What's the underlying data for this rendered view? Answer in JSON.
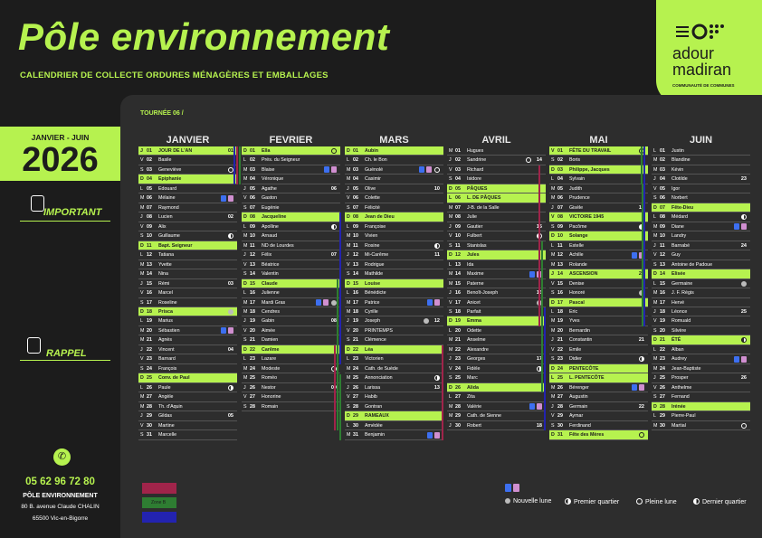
{
  "header": {
    "title": "Pôle environnement",
    "subtitle": "CALENDRIER  DE COLLECTE ORDURES MÉNAGÈRES ET EMBALLAGES",
    "tournee": "TOURNÉE 06 /"
  },
  "logo": {
    "line1": "adour",
    "line2": "madiran",
    "tagline": "COMMUNAUTÉ DE COMMUNES"
  },
  "year_box": {
    "period": "JANVIER - JUIN",
    "year": "2026"
  },
  "sidebar": {
    "important": "IMPORTANT",
    "rappel": "RAPPEL",
    "phone": "05 62 96 72 80",
    "org": "PÔLE ENVIRONNEMENT",
    "address1": "80 B. avenue Claude CHALIN",
    "address2": "65500 Vic-en-Bigorre"
  },
  "legend": {
    "zone_b": "Zone B",
    "moons": [
      {
        "icon": "new-moon-icon",
        "label": "Nouvelle lune"
      },
      {
        "icon": "first-quarter-icon",
        "label": "Premier quartier"
      },
      {
        "icon": "full-moon-icon",
        "label": "Pleine lune"
      },
      {
        "icon": "last-quarter-icon",
        "label": "Dernier quartier"
      }
    ]
  },
  "colors": {
    "accent": "#b6f24f",
    "bin_blue": "#3d6ff0",
    "bin_pink": "#d08fd0",
    "vacation_red": "#a0244a",
    "vacation_green": "#2e7d32",
    "vacation_blue": "#2323b0"
  },
  "months": [
    {
      "name": "JANVIER",
      "days": [
        {
          "d": "J",
          "n": "01",
          "s": "JOUR DE L'AN",
          "h": true,
          "w": "01"
        },
        {
          "d": "V",
          "n": "02",
          "s": "Basile"
        },
        {
          "d": "S",
          "n": "03",
          "s": "Geneviève",
          "moon": "pl"
        },
        {
          "d": "D",
          "n": "04",
          "s": "Epiphanie",
          "h": true
        },
        {
          "d": "L",
          "n": "05",
          "s": "Edouard"
        },
        {
          "d": "M",
          "n": "06",
          "s": "Mélaine",
          "bins": true
        },
        {
          "d": "M",
          "n": "07",
          "s": "Raymond"
        },
        {
          "d": "J",
          "n": "08",
          "s": "Lucien",
          "w": "02"
        },
        {
          "d": "V",
          "n": "09",
          "s": "Alix"
        },
        {
          "d": "S",
          "n": "10",
          "s": "Guillaume",
          "moon": "dq"
        },
        {
          "d": "D",
          "n": "11",
          "s": "Bapt. Seigneur",
          "h": true
        },
        {
          "d": "L",
          "n": "12",
          "s": "Tatiana"
        },
        {
          "d": "M",
          "n": "13",
          "s": "Yvette"
        },
        {
          "d": "M",
          "n": "14",
          "s": "Nina"
        },
        {
          "d": "J",
          "n": "15",
          "s": "Rémi",
          "w": "03"
        },
        {
          "d": "V",
          "n": "16",
          "s": "Marcel"
        },
        {
          "d": "S",
          "n": "17",
          "s": "Roseline"
        },
        {
          "d": "D",
          "n": "18",
          "s": "Prisca",
          "h": true,
          "moon": "nl"
        },
        {
          "d": "L",
          "n": "19",
          "s": "Marius"
        },
        {
          "d": "M",
          "n": "20",
          "s": "Sébastien",
          "bins": true
        },
        {
          "d": "M",
          "n": "21",
          "s": "Agnès"
        },
        {
          "d": "J",
          "n": "22",
          "s": "Vincent",
          "w": "04"
        },
        {
          "d": "V",
          "n": "23",
          "s": "Barnard"
        },
        {
          "d": "S",
          "n": "24",
          "s": "François"
        },
        {
          "d": "D",
          "n": "25",
          "s": "Conv. de Paul",
          "h": true
        },
        {
          "d": "L",
          "n": "26",
          "s": "Paule",
          "moon": "pq"
        },
        {
          "d": "M",
          "n": "27",
          "s": "Angèle"
        },
        {
          "d": "M",
          "n": "28",
          "s": "Th. d'Aquin"
        },
        {
          "d": "J",
          "n": "29",
          "s": "Gildas",
          "w": "05"
        },
        {
          "d": "V",
          "n": "30",
          "s": "Martine"
        },
        {
          "d": "S",
          "n": "31",
          "s": "Marcelle"
        }
      ]
    },
    {
      "name": "FEVRIER",
      "days": [
        {
          "d": "D",
          "n": "01",
          "s": "Ella",
          "h": true,
          "moon": "pl"
        },
        {
          "d": "L",
          "n": "02",
          "s": "Prés. du Seigneur"
        },
        {
          "d": "M",
          "n": "03",
          "s": "Blaise",
          "bins": true
        },
        {
          "d": "M",
          "n": "04",
          "s": "Véronique"
        },
        {
          "d": "J",
          "n": "05",
          "s": "Agathe",
          "w": "06"
        },
        {
          "d": "V",
          "n": "06",
          "s": "Gaston"
        },
        {
          "d": "S",
          "n": "07",
          "s": "Eugénie"
        },
        {
          "d": "D",
          "n": "08",
          "s": "Jacqueline",
          "h": true
        },
        {
          "d": "L",
          "n": "09",
          "s": "Apolline",
          "moon": "dq"
        },
        {
          "d": "M",
          "n": "10",
          "s": "Arnaud"
        },
        {
          "d": "M",
          "n": "11",
          "s": "ND de Lourdes"
        },
        {
          "d": "J",
          "n": "12",
          "s": "Félix",
          "w": "07"
        },
        {
          "d": "V",
          "n": "13",
          "s": "Béatrice"
        },
        {
          "d": "S",
          "n": "14",
          "s": "Valentin"
        },
        {
          "d": "D",
          "n": "15",
          "s": "Claude",
          "h": true
        },
        {
          "d": "L",
          "n": "16",
          "s": "Julienne"
        },
        {
          "d": "M",
          "n": "17",
          "s": "Mardi Gras",
          "bins": true,
          "moon": "nl"
        },
        {
          "d": "M",
          "n": "18",
          "s": "Cendres"
        },
        {
          "d": "J",
          "n": "19",
          "s": "Gabin",
          "w": "08"
        },
        {
          "d": "V",
          "n": "20",
          "s": "Aimée"
        },
        {
          "d": "S",
          "n": "21",
          "s": "Damien"
        },
        {
          "d": "D",
          "n": "22",
          "s": "Carême",
          "h": true
        },
        {
          "d": "L",
          "n": "23",
          "s": "Lazare"
        },
        {
          "d": "M",
          "n": "24",
          "s": "Modeste",
          "moon": "pq"
        },
        {
          "d": "M",
          "n": "25",
          "s": "Roméo"
        },
        {
          "d": "J",
          "n": "26",
          "s": "Nestor",
          "w": "09"
        },
        {
          "d": "V",
          "n": "27",
          "s": "Honorine"
        },
        {
          "d": "S",
          "n": "28",
          "s": "Romain"
        }
      ]
    },
    {
      "name": "MARS",
      "days": [
        {
          "d": "D",
          "n": "01",
          "s": "Aubin",
          "h": true
        },
        {
          "d": "L",
          "n": "02",
          "s": "Ch. le Bon"
        },
        {
          "d": "M",
          "n": "03",
          "s": "Guénolé",
          "bins": true,
          "moon": "pl"
        },
        {
          "d": "M",
          "n": "04",
          "s": "Casimir"
        },
        {
          "d": "J",
          "n": "05",
          "s": "Olive",
          "w": "10"
        },
        {
          "d": "V",
          "n": "06",
          "s": "Colette"
        },
        {
          "d": "S",
          "n": "07",
          "s": "Félicité"
        },
        {
          "d": "D",
          "n": "08",
          "s": "Jean de Dieu",
          "h": true
        },
        {
          "d": "L",
          "n": "09",
          "s": "Françoise"
        },
        {
          "d": "M",
          "n": "10",
          "s": "Vivien"
        },
        {
          "d": "M",
          "n": "11",
          "s": "Rosine",
          "moon": "dq"
        },
        {
          "d": "J",
          "n": "12",
          "s": "Mi-Carême",
          "w": "11"
        },
        {
          "d": "V",
          "n": "13",
          "s": "Rodrigue"
        },
        {
          "d": "S",
          "n": "14",
          "s": "Mathilde"
        },
        {
          "d": "D",
          "n": "15",
          "s": "Louise",
          "h": true
        },
        {
          "d": "L",
          "n": "16",
          "s": "Bénédicte"
        },
        {
          "d": "M",
          "n": "17",
          "s": "Patrice",
          "bins": true
        },
        {
          "d": "M",
          "n": "18",
          "s": "Cyrille"
        },
        {
          "d": "J",
          "n": "19",
          "s": "Joseph",
          "moon": "nl",
          "w": "12"
        },
        {
          "d": "V",
          "n": "20",
          "s": "PRINTEMPS"
        },
        {
          "d": "S",
          "n": "21",
          "s": "Clémence"
        },
        {
          "d": "D",
          "n": "22",
          "s": "Léa",
          "h": true
        },
        {
          "d": "L",
          "n": "23",
          "s": "Victorien"
        },
        {
          "d": "M",
          "n": "24",
          "s": "Cath. de Suède"
        },
        {
          "d": "M",
          "n": "25",
          "s": "Annonciation",
          "moon": "pq"
        },
        {
          "d": "J",
          "n": "26",
          "s": "Larissa",
          "w": "13"
        },
        {
          "d": "V",
          "n": "27",
          "s": "Habib"
        },
        {
          "d": "S",
          "n": "28",
          "s": "Gontran"
        },
        {
          "d": "D",
          "n": "29",
          "s": "RAMEAUX",
          "h": true
        },
        {
          "d": "L",
          "n": "30",
          "s": "Amédée"
        },
        {
          "d": "M",
          "n": "31",
          "s": "Benjamin",
          "bins": true
        }
      ]
    },
    {
      "name": "AVRIL",
      "days": [
        {
          "d": "M",
          "n": "01",
          "s": "Hugues"
        },
        {
          "d": "J",
          "n": "02",
          "s": "Sandrine",
          "moon": "pl",
          "w": "14"
        },
        {
          "d": "V",
          "n": "03",
          "s": "Richard"
        },
        {
          "d": "S",
          "n": "04",
          "s": "Isidore"
        },
        {
          "d": "D",
          "n": "05",
          "s": "PÂQUES",
          "h": true
        },
        {
          "d": "L",
          "n": "06",
          "s": "L. DE PÂQUES",
          "h": true
        },
        {
          "d": "M",
          "n": "07",
          "s": "J-B. de la Salle"
        },
        {
          "d": "M",
          "n": "08",
          "s": "Julie"
        },
        {
          "d": "J",
          "n": "09",
          "s": "Gautier",
          "w": "15"
        },
        {
          "d": "V",
          "n": "10",
          "s": "Fulbert",
          "moon": "dq"
        },
        {
          "d": "S",
          "n": "11",
          "s": "Stanislas"
        },
        {
          "d": "D",
          "n": "12",
          "s": "Jules",
          "h": true
        },
        {
          "d": "L",
          "n": "13",
          "s": "Ida"
        },
        {
          "d": "M",
          "n": "14",
          "s": "Maxime",
          "bins": true
        },
        {
          "d": "M",
          "n": "15",
          "s": "Paterne"
        },
        {
          "d": "J",
          "n": "16",
          "s": "Benoît-Joseph",
          "w": "16"
        },
        {
          "d": "V",
          "n": "17",
          "s": "Anicet",
          "moon": "nl"
        },
        {
          "d": "S",
          "n": "18",
          "s": "Parfait"
        },
        {
          "d": "D",
          "n": "19",
          "s": "Emma",
          "h": true
        },
        {
          "d": "L",
          "n": "20",
          "s": "Odette"
        },
        {
          "d": "M",
          "n": "21",
          "s": "Anselme"
        },
        {
          "d": "M",
          "n": "22",
          "s": "Alexandre"
        },
        {
          "d": "J",
          "n": "23",
          "s": "Georges",
          "w": "17"
        },
        {
          "d": "V",
          "n": "24",
          "s": "Fidèle",
          "moon": "pq"
        },
        {
          "d": "S",
          "n": "25",
          "s": "Marc"
        },
        {
          "d": "D",
          "n": "26",
          "s": "Alida",
          "h": true
        },
        {
          "d": "L",
          "n": "27",
          "s": "Zita"
        },
        {
          "d": "M",
          "n": "28",
          "s": "Valérie",
          "bins": true
        },
        {
          "d": "M",
          "n": "29",
          "s": "Cath. de Sienne"
        },
        {
          "d": "J",
          "n": "30",
          "s": "Robert",
          "w": "18"
        }
      ]
    },
    {
      "name": "MAI",
      "days": [
        {
          "d": "V",
          "n": "01",
          "s": "FÊTE DU TRAVAIL",
          "h": true,
          "moon": "pl"
        },
        {
          "d": "S",
          "n": "02",
          "s": "Boris"
        },
        {
          "d": "D",
          "n": "03",
          "s": "Philippe, Jacques",
          "h": true
        },
        {
          "d": "L",
          "n": "04",
          "s": "Sylvain"
        },
        {
          "d": "M",
          "n": "05",
          "s": "Judith"
        },
        {
          "d": "M",
          "n": "06",
          "s": "Prudence"
        },
        {
          "d": "J",
          "n": "07",
          "s": "Gisèle",
          "w": "19"
        },
        {
          "d": "V",
          "n": "08",
          "s": "VICTOIRE 1945",
          "h": true
        },
        {
          "d": "S",
          "n": "09",
          "s": "Pacôme",
          "moon": "dq"
        },
        {
          "d": "D",
          "n": "10",
          "s": "Solange",
          "h": true
        },
        {
          "d": "L",
          "n": "11",
          "s": "Estelle"
        },
        {
          "d": "M",
          "n": "12",
          "s": "Achille",
          "bins": true
        },
        {
          "d": "M",
          "n": "13",
          "s": "Rolande"
        },
        {
          "d": "J",
          "n": "14",
          "s": "ASCENSION",
          "h": true,
          "w": "20"
        },
        {
          "d": "V",
          "n": "15",
          "s": "Denise"
        },
        {
          "d": "S",
          "n": "16",
          "s": "Honoré",
          "moon": "nl"
        },
        {
          "d": "D",
          "n": "17",
          "s": "Pascal",
          "h": true
        },
        {
          "d": "L",
          "n": "18",
          "s": "Eric"
        },
        {
          "d": "M",
          "n": "19",
          "s": "Yves"
        },
        {
          "d": "M",
          "n": "20",
          "s": "Bernardin"
        },
        {
          "d": "J",
          "n": "21",
          "s": "Constantin",
          "w": "21"
        },
        {
          "d": "V",
          "n": "22",
          "s": "Emile"
        },
        {
          "d": "S",
          "n": "23",
          "s": "Didier",
          "moon": "pq"
        },
        {
          "d": "D",
          "n": "24",
          "s": "PENTECÔTE",
          "h": true
        },
        {
          "d": "L",
          "n": "25",
          "s": "L. PENTECÔTE",
          "h": true
        },
        {
          "d": "M",
          "n": "26",
          "s": "Bérenger",
          "bins": true
        },
        {
          "d": "M",
          "n": "27",
          "s": "Augustin"
        },
        {
          "d": "J",
          "n": "28",
          "s": "Germain",
          "w": "22"
        },
        {
          "d": "V",
          "n": "29",
          "s": "Aymar"
        },
        {
          "d": "S",
          "n": "30",
          "s": "Ferdinand"
        },
        {
          "d": "D",
          "n": "31",
          "s": "Fête des Mères",
          "h": true,
          "moon": "pl"
        }
      ]
    },
    {
      "name": "JUIN",
      "days": [
        {
          "d": "L",
          "n": "01",
          "s": "Justin"
        },
        {
          "d": "M",
          "n": "02",
          "s": "Blandine"
        },
        {
          "d": "M",
          "n": "03",
          "s": "Kévin"
        },
        {
          "d": "J",
          "n": "04",
          "s": "Clotilde",
          "w": "23"
        },
        {
          "d": "V",
          "n": "05",
          "s": "Igor"
        },
        {
          "d": "S",
          "n": "06",
          "s": "Norbert"
        },
        {
          "d": "D",
          "n": "07",
          "s": "Fête-Dieu",
          "h": true
        },
        {
          "d": "L",
          "n": "08",
          "s": "Médard",
          "moon": "dq"
        },
        {
          "d": "M",
          "n": "09",
          "s": "Diane",
          "bins": true
        },
        {
          "d": "M",
          "n": "10",
          "s": "Landry"
        },
        {
          "d": "J",
          "n": "11",
          "s": "Barnabé",
          "w": "24"
        },
        {
          "d": "V",
          "n": "12",
          "s": "Guy"
        },
        {
          "d": "S",
          "n": "13",
          "s": "Antoine de Padoue"
        },
        {
          "d": "D",
          "n": "14",
          "s": "Elisée",
          "h": true
        },
        {
          "d": "L",
          "n": "15",
          "s": "Germaine",
          "moon": "nl"
        },
        {
          "d": "M",
          "n": "16",
          "s": "J. F. Régis"
        },
        {
          "d": "M",
          "n": "17",
          "s": "Hervé"
        },
        {
          "d": "J",
          "n": "18",
          "s": "Léonce",
          "w": "25"
        },
        {
          "d": "V",
          "n": "19",
          "s": "Romuald"
        },
        {
          "d": "S",
          "n": "20",
          "s": "Silvère"
        },
        {
          "d": "D",
          "n": "21",
          "s": "ÉTÉ",
          "h": true,
          "moon": "pq"
        },
        {
          "d": "L",
          "n": "22",
          "s": "Alban"
        },
        {
          "d": "M",
          "n": "23",
          "s": "Audrey",
          "bins": true
        },
        {
          "d": "M",
          "n": "24",
          "s": "Jean-Baptiste"
        },
        {
          "d": "J",
          "n": "25",
          "s": "Prosper",
          "w": "26"
        },
        {
          "d": "V",
          "n": "26",
          "s": "Anthelme"
        },
        {
          "d": "S",
          "n": "27",
          "s": "Fernand"
        },
        {
          "d": "D",
          "n": "28",
          "s": "Irénée",
          "h": true
        },
        {
          "d": "L",
          "n": "29",
          "s": "Pierre-Paul"
        },
        {
          "d": "M",
          "n": "30",
          "s": "Martial",
          "moon": "pl"
        }
      ]
    }
  ]
}
